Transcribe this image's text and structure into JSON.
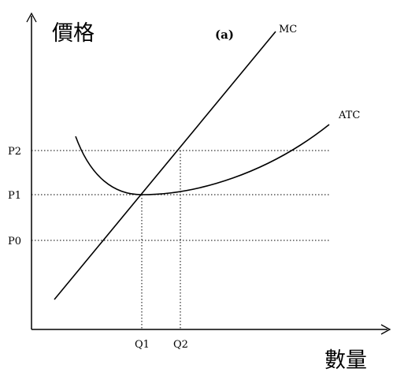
{
  "diagram": {
    "panel_label": "(a)",
    "y_axis_label": "價格",
    "x_axis_label": "數量",
    "curves": {
      "mc": {
        "name": "MC"
      },
      "atc": {
        "name": "ATC"
      }
    },
    "price_levels": [
      "P2",
      "P1",
      "P0"
    ],
    "quantity_levels": [
      "Q1",
      "Q2"
    ],
    "line_color": "#000000",
    "background_color": "#ffffff"
  }
}
